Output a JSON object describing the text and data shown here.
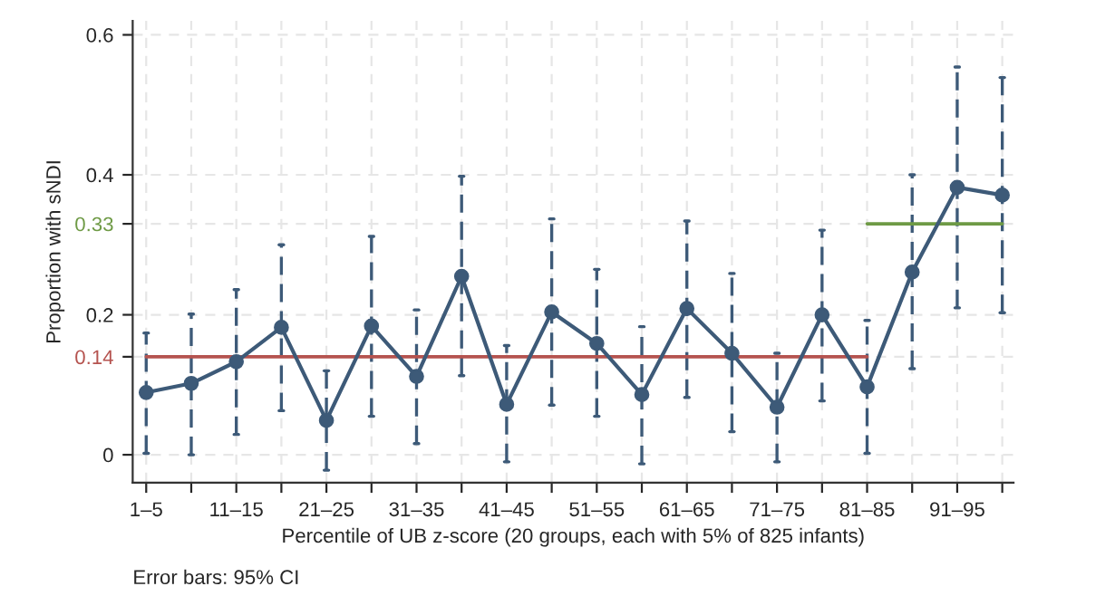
{
  "chart_data": {
    "type": "line",
    "xlabel": "Percentile of UB z-score (20 groups, each with 5% of 825 infants)",
    "ylabel": "Proportion with sNDI",
    "annotations": [
      "Error bars: 95% CI"
    ],
    "categories": [
      "1–5",
      null,
      "11–15",
      null,
      "21–25",
      null,
      "31–35",
      null,
      "41–45",
      null,
      "51–55",
      null,
      "61–65",
      null,
      "71–75",
      null,
      "81–85",
      null,
      "91–95",
      null
    ],
    "series": [
      {
        "color": "#3d5a78",
        "marker": "circle",
        "values": [
          0.089,
          0.102,
          0.133,
          0.182,
          0.049,
          0.184,
          0.112,
          0.255,
          0.072,
          0.204,
          0.159,
          0.086,
          0.209,
          0.145,
          0.068,
          0.2,
          0.097,
          0.261,
          0.382,
          0.371
        ],
        "errors": [
          [
            0.002,
            0.174
          ],
          [
            0.0,
            0.201
          ],
          [
            0.029,
            0.236
          ],
          [
            0.063,
            0.3
          ],
          [
            -0.022,
            0.12
          ],
          [
            0.055,
            0.312
          ],
          [
            0.016,
            0.207
          ],
          [
            0.113,
            0.398
          ],
          [
            -0.01,
            0.156
          ],
          [
            0.071,
            0.337
          ],
          [
            0.055,
            0.265
          ],
          [
            -0.013,
            0.183
          ],
          [
            0.082,
            0.334
          ],
          [
            0.033,
            0.259
          ],
          [
            -0.01,
            0.145
          ],
          [
            0.077,
            0.321
          ],
          [
            0.002,
            0.192
          ],
          [
            0.123,
            0.4
          ],
          [
            0.21,
            0.554
          ],
          [
            0.203,
            0.539
          ]
        ]
      },
      {
        "color": "#b5534f",
        "marker": "none",
        "values": [
          0.14,
          0.14,
          0.14,
          0.14,
          0.14,
          0.14,
          0.14,
          0.14,
          0.14,
          0.14,
          0.14,
          0.14,
          0.14,
          0.14,
          0.14,
          0.14,
          0.14,
          null,
          null,
          null
        ]
      },
      {
        "color": "#6e9a45",
        "marker": "none",
        "values": [
          null,
          null,
          null,
          null,
          null,
          null,
          null,
          null,
          null,
          null,
          null,
          null,
          null,
          null,
          null,
          null,
          0.33,
          0.33,
          0.33,
          0.33
        ]
      }
    ],
    "ylim": [
      -0.04,
      0.62
    ],
    "yticks": [
      0,
      0.14,
      0.2,
      0.33,
      0.4,
      0.6
    ],
    "grid": true,
    "legend": false
  }
}
